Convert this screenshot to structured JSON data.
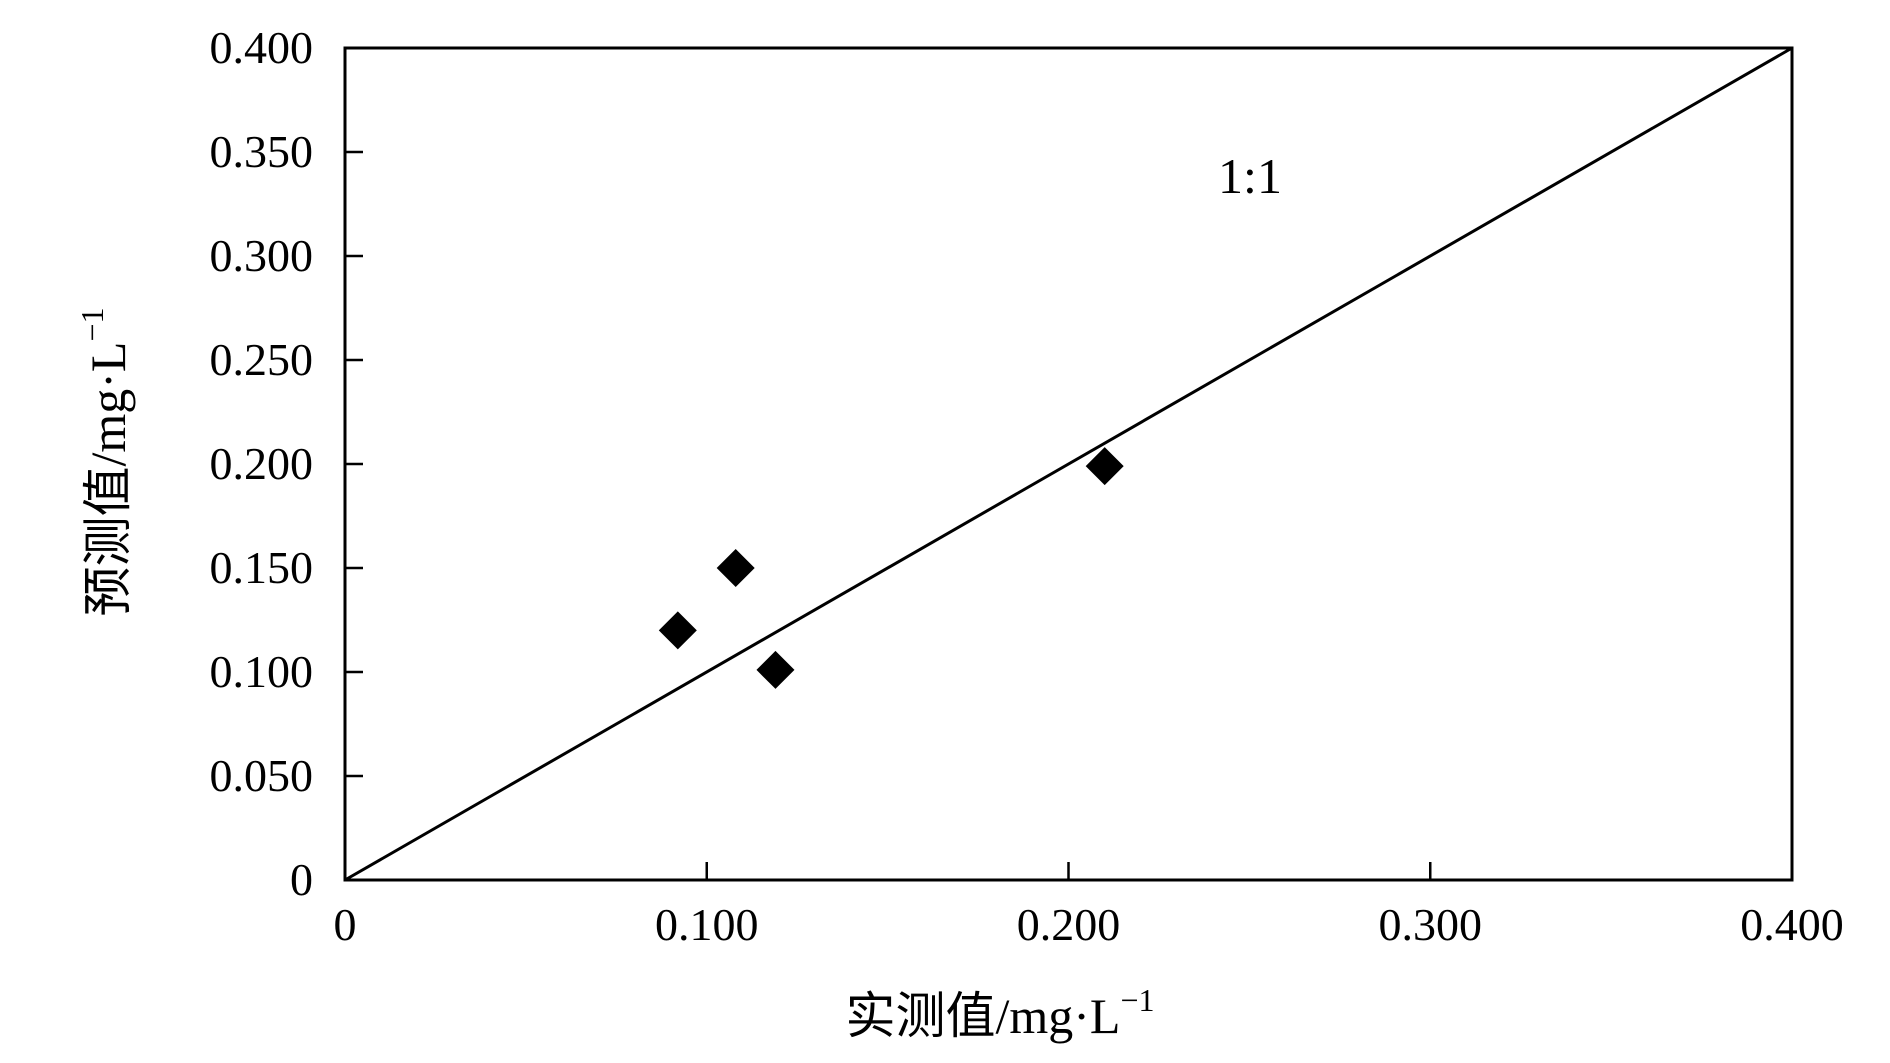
{
  "chart_data": {
    "type": "scatter",
    "xlabel": "实测值/mg·L",
    "ylabel": "预测值/mg·L",
    "unit_exponent": "−1",
    "xlim": [
      0,
      0.4
    ],
    "ylim": [
      0,
      0.4
    ],
    "x_ticks": [
      "0",
      "0.100",
      "0.200",
      "0.300",
      "0.400"
    ],
    "x_tick_values": [
      0,
      0.1,
      0.2,
      0.3,
      0.4
    ],
    "y_ticks": [
      "0",
      "0.050",
      "0.100",
      "0.150",
      "0.200",
      "0.250",
      "0.300",
      "0.350",
      "0.400"
    ],
    "y_tick_values": [
      0,
      0.05,
      0.1,
      0.15,
      0.2,
      0.25,
      0.3,
      0.35,
      0.4
    ],
    "series": [
      {
        "marker": "diamond",
        "color": "#000000",
        "points": [
          {
            "x": 0.092,
            "y": 0.12
          },
          {
            "x": 0.108,
            "y": 0.15
          },
          {
            "x": 0.119,
            "y": 0.101
          },
          {
            "x": 0.21,
            "y": 0.199
          }
        ]
      }
    ],
    "reference_line": {
      "from": [
        0,
        0
      ],
      "to": [
        0.4,
        0.4
      ],
      "label": "1:1"
    },
    "grid": false,
    "legend": "none"
  }
}
